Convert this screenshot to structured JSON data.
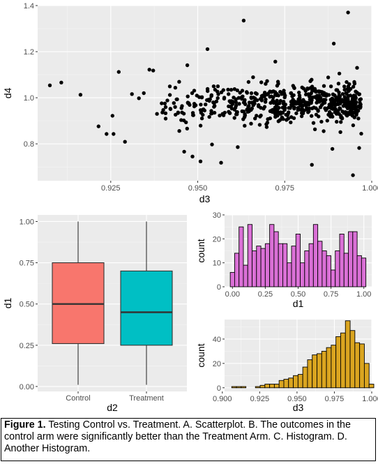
{
  "caption": {
    "label": "Figure 1.",
    "text": "Testing Control vs. Treatment. A. Scatterplot. B. The outcomes in the control arm were significantly better than the Treatment Arm. C. Histogram. D. Another Histogram."
  },
  "colors": {
    "panel_bg": "#ebebeb",
    "grid_major": "#ffffff",
    "point": "#000000",
    "box_control": "#f8766d",
    "box_treatment": "#00bfc4",
    "hist_d1": "#da70d6",
    "hist_d3": "#daa520"
  },
  "chart_data": [
    {
      "panel": "A",
      "type": "scatter",
      "xlabel": "d3",
      "ylabel": "d4",
      "xlim": [
        0.904,
        1.0
      ],
      "ylim": [
        0.64,
        1.4
      ],
      "x_ticks": [
        "0.925",
        "0.950",
        "0.975",
        "1.000"
      ],
      "y_ticks": [
        "0.8",
        "1.0",
        "1.2",
        "1.4"
      ],
      "grid": true,
      "points_note": "approximately 600 points; main cluster d3 0.94–0.99, d4 0.7–1.3",
      "points": [
        [
          0.9075,
          1.054
        ],
        [
          0.9108,
          1.066
        ],
        [
          0.9163,
          1.013
        ],
        [
          0.9215,
          0.876
        ],
        [
          0.9238,
          0.843
        ],
        [
          0.9255,
          0.922
        ],
        [
          0.9258,
          0.843
        ],
        [
          0.9273,
          1.112
        ],
        [
          0.9291,
          0.809
        ],
        [
          0.9311,
          1.016
        ],
        [
          0.9331,
          0.998
        ],
        [
          0.9345,
          1.02
        ],
        [
          0.9361,
          1.122
        ],
        [
          0.9372,
          1.118
        ],
        [
          0.9383,
          0.93
        ],
        [
          0.9401,
          0.947
        ],
        [
          0.942,
          1.012
        ],
        [
          0.9435,
          0.96
        ],
        [
          0.9447,
          0.856
        ],
        [
          0.9461,
          0.766
        ],
        [
          0.947,
          1.141
        ],
        [
          0.9485,
          0.745
        ],
        [
          0.9508,
          0.724
        ],
        [
          0.9528,
          1.211
        ],
        [
          0.9541,
          0.797
        ],
        [
          0.9567,
          0.718
        ],
        [
          0.9615,
          0.786
        ],
        [
          0.9632,
          1.335
        ],
        [
          0.9659,
          1.089
        ],
        [
          0.9723,
          1.157
        ],
        [
          0.9811,
          1.014
        ],
        [
          0.9828,
          0.709
        ],
        [
          0.9847,
          0.919
        ],
        [
          0.9862,
          0.855
        ],
        [
          0.9875,
          1.088
        ],
        [
          0.9887,
          0.778
        ],
        [
          0.9891,
          1.235
        ],
        [
          0.9902,
          0.987
        ],
        [
          0.9907,
          1.105
        ],
        [
          0.991,
          0.851
        ],
        [
          0.9932,
          1.37
        ],
        [
          0.9946,
          0.664
        ],
        [
          0.9958,
          1.13
        ],
        [
          0.9964,
          0.782
        ],
        [
          0.997,
          0.844
        ]
      ]
    },
    {
      "panel": "B",
      "type": "box",
      "xlabel": "d2",
      "ylabel": "d1",
      "categories": [
        "Control",
        "Treatment"
      ],
      "ylim": [
        -0.03,
        1.04
      ],
      "y_ticks": [
        "0.00",
        "0.25",
        "0.50",
        "0.75",
        "1.00"
      ],
      "boxes": [
        {
          "category": "Control",
          "min": 0.01,
          "q1": 0.26,
          "median": 0.5,
          "q3": 0.75,
          "max": 1.0
        },
        {
          "category": "Treatment",
          "min": 0.01,
          "q1": 0.25,
          "median": 0.45,
          "q3": 0.7,
          "max": 1.0
        }
      ]
    },
    {
      "panel": "C",
      "type": "histogram",
      "xlabel": "d1",
      "ylabel": "count",
      "xlim": [
        -0.06,
        1.06
      ],
      "ylim": [
        0,
        30
      ],
      "x_ticks": [
        "0.00",
        "0.25",
        "0.50",
        "0.75",
        "1.00"
      ],
      "y_ticks": [
        "0",
        "10",
        "20",
        "30"
      ],
      "bins": {
        "start": -0.0167,
        "width": 0.0333
      },
      "counts": [
        6,
        14,
        25,
        9,
        26,
        15,
        17,
        16,
        18,
        26,
        23,
        18,
        18,
        10,
        17,
        22,
        10,
        15,
        18,
        26,
        19,
        15,
        13,
        7,
        15,
        22,
        14,
        23,
        23,
        13,
        12
      ]
    },
    {
      "panel": "D",
      "type": "histogram",
      "xlabel": "d3",
      "ylabel": "count",
      "xlim": [
        0.9015,
        1.0
      ],
      "ylim": [
        -3,
        56
      ],
      "x_ticks": [
        "0.900",
        "0.925",
        "0.950",
        "0.975",
        "1.000"
      ],
      "y_ticks": [
        "0",
        "20",
        "40"
      ],
      "bins": {
        "start": 0.9063,
        "width": 0.00317
      },
      "counts": [
        1,
        1,
        1,
        0,
        0,
        1,
        2,
        3,
        3,
        3,
        6,
        7,
        8,
        10,
        11,
        17,
        23,
        27,
        28,
        30,
        33,
        35,
        42,
        45,
        55,
        47,
        37,
        36,
        20,
        3
      ]
    }
  ]
}
